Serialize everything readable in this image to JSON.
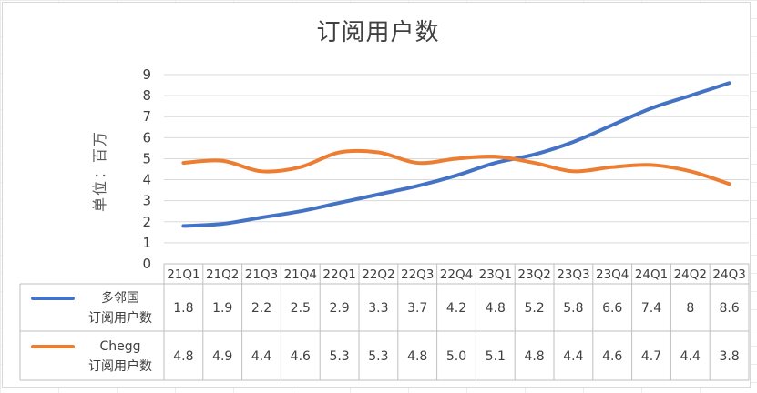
{
  "chart_data": {
    "type": "line",
    "title": "订阅用户数",
    "ylabel": "单位：百万",
    "ylim": [
      0,
      9
    ],
    "yticks": [
      0,
      1,
      2,
      3,
      4,
      5,
      6,
      7,
      8,
      9
    ],
    "grid": true,
    "legend": "data-table-left",
    "categories": [
      "21Q1",
      "21Q2",
      "21Q3",
      "21Q4",
      "22Q1",
      "22Q2",
      "22Q3",
      "22Q4",
      "23Q1",
      "23Q2",
      "23Q3",
      "23Q4",
      "24Q1",
      "24Q2",
      "24Q3"
    ],
    "series": [
      {
        "name": [
          "多邻国",
          "订阅用户数"
        ],
        "color": "#4472c4",
        "values": [
          1.8,
          1.9,
          2.2,
          2.5,
          2.9,
          3.3,
          3.7,
          4.2,
          4.8,
          5.2,
          5.8,
          6.6,
          7.4,
          8,
          8.6
        ],
        "labels": [
          "1.8",
          "1.9",
          "2.2",
          "2.5",
          "2.9",
          "3.3",
          "3.7",
          "4.2",
          "4.8",
          "5.2",
          "5.8",
          "6.6",
          "7.4",
          "8",
          "8.6"
        ]
      },
      {
        "name": [
          "Chegg",
          "订阅用户数"
        ],
        "color": "#ed7d31",
        "values": [
          4.8,
          4.9,
          4.4,
          4.6,
          5.3,
          5.3,
          4.8,
          5.0,
          5.1,
          4.8,
          4.4,
          4.6,
          4.7,
          4.4,
          3.8
        ],
        "labels": [
          "4.8",
          "4.9",
          "4.4",
          "4.6",
          "5.3",
          "5.3",
          "4.8",
          "5.0",
          "5.1",
          "4.8",
          "4.4",
          "4.6",
          "4.7",
          "4.4",
          "3.8"
        ]
      }
    ]
  }
}
